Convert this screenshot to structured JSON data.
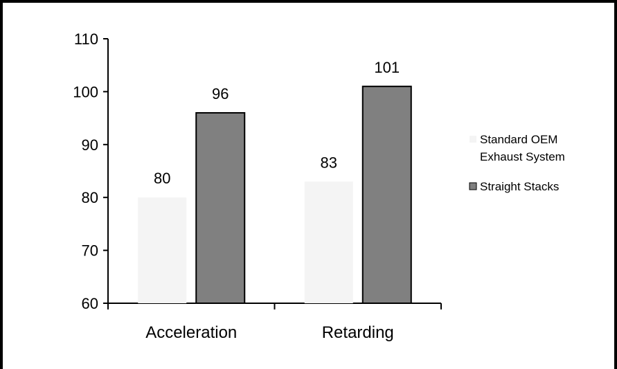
{
  "chart_data": {
    "type": "bar",
    "categories": [
      "Acceleration",
      "Retarding"
    ],
    "series": [
      {
        "name": "Standard OEM Exhaust System",
        "values": [
          80,
          83
        ],
        "color": "#f4f4f4"
      },
      {
        "name": "Straight Stacks",
        "values": [
          96,
          101
        ],
        "color": "#808080"
      }
    ],
    "ylim": [
      60,
      110
    ],
    "yticks": [
      60,
      70,
      80,
      90,
      100,
      110
    ],
    "legend_lines": [
      [
        "Standard OEM",
        "Exhaust System"
      ],
      [
        "Straight Stacks"
      ]
    ],
    "legend_position": "right",
    "grid": false,
    "title": "",
    "xlabel": "",
    "ylabel": ""
  }
}
